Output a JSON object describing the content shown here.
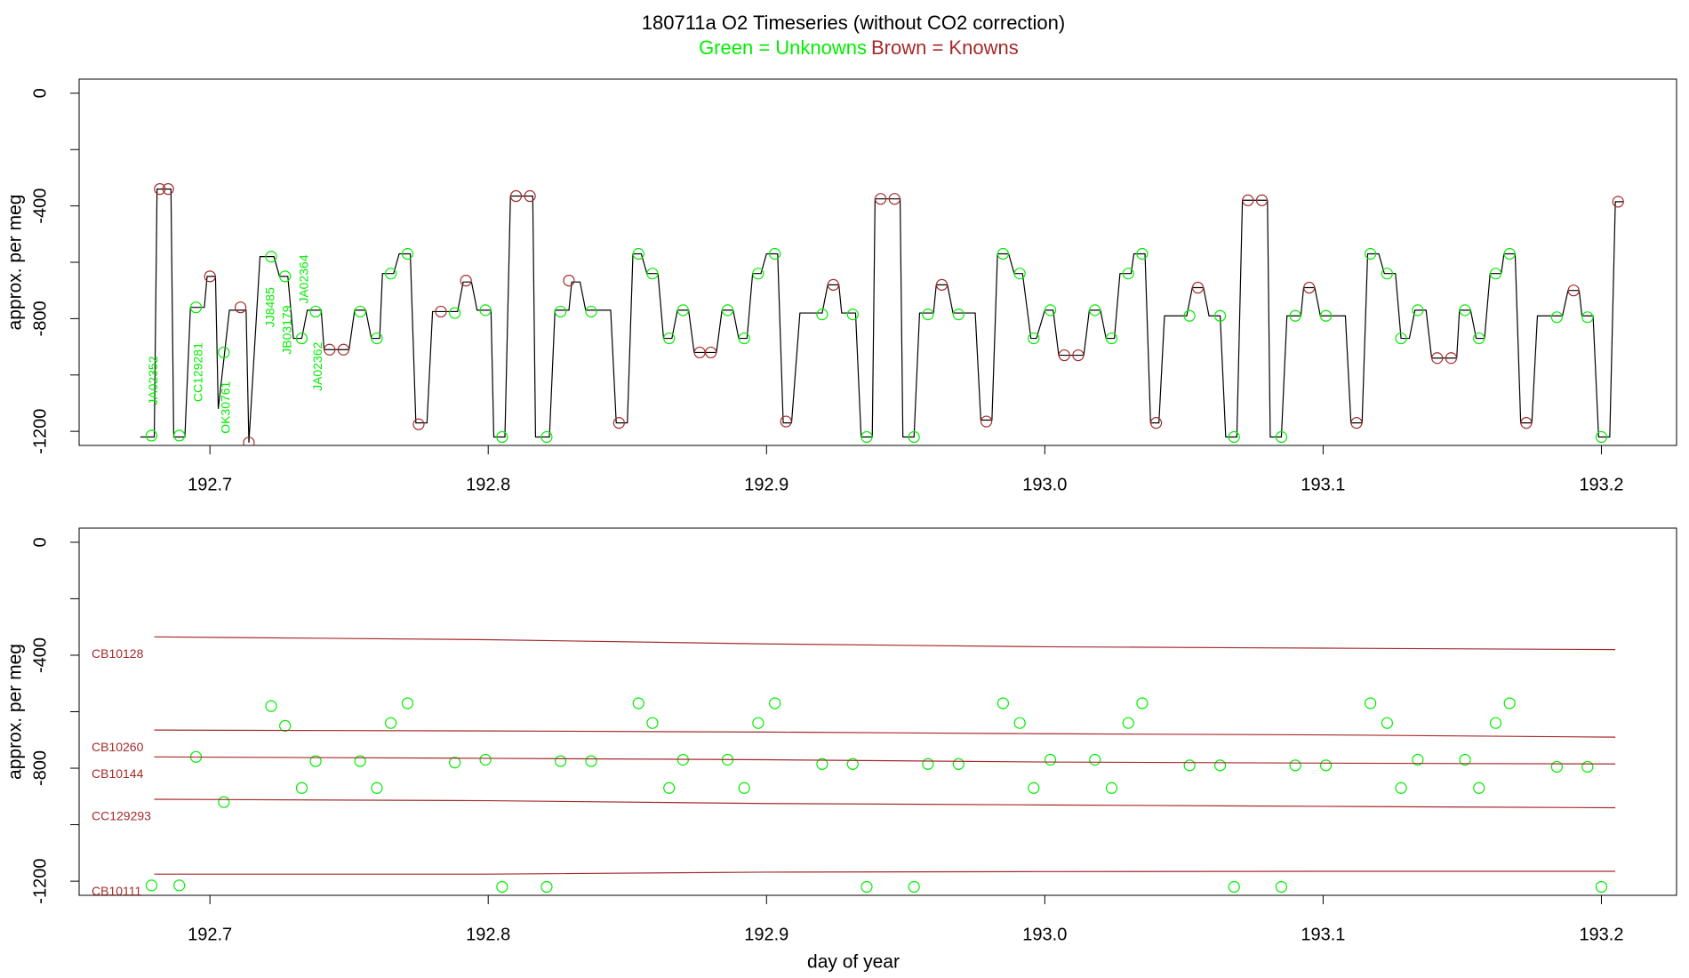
{
  "chart_data": [
    {
      "type": "line",
      "title": "180711a   O2 Timeseries (without CO2 correction)",
      "subtitle": [
        {
          "text": "Green = Unknowns",
          "color": "#00ee00"
        },
        {
          "text": "Brown = Knowns",
          "color": "#a52a2a"
        }
      ],
      "ylabel": "approx. per meg",
      "xlim": [
        192.653,
        193.227
      ],
      "ylim": [
        -1250,
        50
      ],
      "xticks": [
        192.7,
        192.8,
        192.9,
        {
          "value": 193,
          "label": "193.0"
        },
        193.1,
        193.2
      ],
      "yticks": [
        0,
        -400,
        -800,
        -1200
      ],
      "minor_yticks": [
        -200,
        -600,
        -1000
      ],
      "series": [
        {
          "mode": "line",
          "color": "#000000",
          "x": [
            192.675,
            192.68,
            192.681,
            192.686,
            192.687,
            192.691,
            192.693,
            192.698,
            192.699,
            192.702,
            192.703,
            192.707,
            192.713,
            192.714,
            192.718,
            192.723,
            192.725,
            192.728,
            192.73,
            192.733,
            192.735,
            192.74,
            192.741,
            192.75,
            192.752,
            192.756,
            192.758,
            192.761,
            192.762,
            192.766,
            192.768,
            192.772,
            192.774,
            192.778,
            192.78,
            192.789,
            192.791,
            192.794,
            192.796,
            192.801,
            192.802,
            192.806,
            192.808,
            192.816,
            192.817,
            192.822,
            192.824,
            192.829,
            192.83,
            192.833,
            192.835,
            192.844,
            192.846,
            192.85,
            192.852,
            192.855,
            192.857,
            192.861,
            192.863,
            192.866,
            192.868,
            192.872,
            192.874,
            192.882,
            192.884,
            192.888,
            192.89,
            192.893,
            192.895,
            192.898,
            192.9,
            192.904,
            192.906,
            192.909,
            192.912,
            192.92,
            192.922,
            192.926,
            192.927,
            192.932,
            192.934,
            192.938,
            192.939,
            192.948,
            192.949,
            192.953,
            192.955,
            192.96,
            192.961,
            192.965,
            192.967,
            192.975,
            192.977,
            192.981,
            192.983,
            192.987,
            192.989,
            192.992,
            192.995,
            192.997,
            193.0,
            193.003,
            193.005,
            193.014,
            193.016,
            193.02,
            193.022,
            193.025,
            193.027,
            193.031,
            193.032,
            193.036,
            193.038,
            193.041,
            193.043,
            193.051,
            193.053,
            193.057,
            193.059,
            193.063,
            193.065,
            193.069,
            193.071,
            193.08,
            193.081,
            193.085,
            193.087,
            193.092,
            193.093,
            193.097,
            193.099,
            193.108,
            193.11,
            193.114,
            193.116,
            193.12,
            193.122,
            193.126,
            193.128,
            193.131,
            193.133,
            193.137,
            193.139,
            193.148,
            193.149,
            193.153,
            193.155,
            193.158,
            193.16,
            193.164,
            193.165,
            193.169,
            193.171,
            193.175,
            193.177,
            193.186,
            193.188,
            193.192,
            193.193,
            193.197,
            193.199,
            193.203,
            193.205,
            193.208
          ],
          "values": [
            -1220,
            -1220,
            -340,
            -340,
            -1220,
            -1220,
            -760,
            -760,
            -650,
            -650,
            -1120,
            -770,
            -770,
            -1240,
            -580,
            -580,
            -650,
            -650,
            -870,
            -870,
            -770,
            -770,
            -910,
            -910,
            -770,
            -770,
            -870,
            -870,
            -640,
            -640,
            -570,
            -570,
            -1170,
            -1170,
            -775,
            -775,
            -670,
            -670,
            -770,
            -770,
            -1220,
            -1220,
            -365,
            -365,
            -1220,
            -1220,
            -770,
            -770,
            -670,
            -670,
            -770,
            -770,
            -1170,
            -1170,
            -570,
            -570,
            -640,
            -640,
            -870,
            -870,
            -770,
            -770,
            -920,
            -920,
            -770,
            -770,
            -870,
            -870,
            -640,
            -640,
            -570,
            -570,
            -1170,
            -1170,
            -780,
            -780,
            -680,
            -680,
            -780,
            -780,
            -1220,
            -1220,
            -375,
            -375,
            -1220,
            -1220,
            -780,
            -780,
            -680,
            -680,
            -780,
            -780,
            -1160,
            -1160,
            -570,
            -570,
            -640,
            -640,
            -870,
            -870,
            -770,
            -770,
            -930,
            -930,
            -770,
            -770,
            -870,
            -870,
            -640,
            -640,
            -570,
            -570,
            -1170,
            -1170,
            -790,
            -790,
            -690,
            -690,
            -790,
            -790,
            -1220,
            -1220,
            -380,
            -380,
            -1220,
            -1220,
            -790,
            -790,
            -690,
            -690,
            -790,
            -790,
            -1170,
            -1170,
            -570,
            -570,
            -640,
            -640,
            -870,
            -870,
            -770,
            -770,
            -940,
            -940,
            -770,
            -770,
            -870,
            -870,
            -640,
            -640,
            -570,
            -570,
            -1170,
            -1170,
            -790,
            -790,
            -700,
            -700,
            -790,
            -790,
            -1220,
            -1220,
            -385,
            -385
          ]
        },
        {
          "mode": "points",
          "color": "#00ee00",
          "x": [
            192.679,
            192.689,
            192.695,
            192.705,
            192.722,
            192.727,
            192.733,
            192.738,
            192.754,
            192.76,
            192.765,
            192.771,
            192.788,
            192.799,
            192.805,
            192.821,
            192.826,
            192.837,
            192.854,
            192.859,
            192.865,
            192.87,
            192.886,
            192.892,
            192.897,
            192.903,
            192.92,
            192.931,
            192.936,
            192.953,
            192.958,
            192.969,
            192.985,
            192.991,
            192.996,
            193.002,
            193.018,
            193.024,
            193.03,
            193.035,
            193.052,
            193.063,
            193.068,
            193.085,
            193.09,
            193.101,
            193.117,
            193.123,
            193.128,
            193.134,
            193.151,
            193.156,
            193.162,
            193.167,
            193.184,
            193.195,
            193.2
          ],
          "values": [
            -1215,
            -1215,
            -760,
            -920,
            -580,
            -650,
            -870,
            -775,
            -775,
            -870,
            -640,
            -570,
            -780,
            -770,
            -1220,
            -1220,
            -775,
            -775,
            -570,
            -640,
            -870,
            -770,
            -770,
            -870,
            -640,
            -570,
            -785,
            -785,
            -1220,
            -1220,
            -785,
            -785,
            -570,
            -640,
            -870,
            -770,
            -770,
            -870,
            -640,
            -570,
            -790,
            -790,
            -1220,
            -1220,
            -790,
            -790,
            -570,
            -640,
            -870,
            -770,
            -770,
            -870,
            -640,
            -570,
            -795,
            -795,
            -1220
          ]
        },
        {
          "mode": "points",
          "color": "#a52a2a",
          "x": [
            192.682,
            192.685,
            192.7,
            192.711,
            192.714,
            192.743,
            192.748,
            192.775,
            192.783,
            192.792,
            192.81,
            192.815,
            192.829,
            192.847,
            192.876,
            192.88,
            192.907,
            192.924,
            192.941,
            192.946,
            192.963,
            192.979,
            193.007,
            193.012,
            193.04,
            193.055,
            193.073,
            193.078,
            193.095,
            193.112,
            193.141,
            193.146,
            193.173,
            193.19,
            193.206
          ],
          "values": [
            -340,
            -340,
            -650,
            -760,
            -1240,
            -910,
            -910,
            -1175,
            -775,
            -665,
            -365,
            -365,
            -665,
            -1170,
            -920,
            -920,
            -1165,
            -680,
            -375,
            -375,
            -680,
            -1165,
            -930,
            -930,
            -1170,
            -690,
            -380,
            -380,
            -690,
            -1170,
            -940,
            -940,
            -1170,
            -700,
            -385
          ]
        }
      ],
      "annotations": [
        {
          "text": "JA02352",
          "x": 192.68,
          "y": -1020,
          "color": "#00ee00"
        },
        {
          "text": "CC129281",
          "x": 192.696,
          "y": -990,
          "color": "#00ee00"
        },
        {
          "text": "OK30761",
          "x": 192.706,
          "y": -1115,
          "color": "#00ee00"
        },
        {
          "text": "JJ8485",
          "x": 192.722,
          "y": -760,
          "color": "#00ee00"
        },
        {
          "text": "JB03179",
          "x": 192.728,
          "y": -840,
          "color": "#00ee00"
        },
        {
          "text": "JA02364",
          "x": 192.734,
          "y": -660,
          "color": "#00ee00"
        },
        {
          "text": "JA02362",
          "x": 192.739,
          "y": -970,
          "color": "#00ee00"
        }
      ]
    },
    {
      "type": "scatter",
      "ylabel": "approx. per meg",
      "xlabel": "day of year",
      "xlim": [
        192.653,
        193.227
      ],
      "ylim": [
        -1250,
        50
      ],
      "xticks": [
        192.7,
        192.8,
        192.9,
        {
          "value": 193,
          "label": "193.0"
        },
        193.1,
        193.2
      ],
      "yticks": [
        0,
        -400,
        -800,
        -1200
      ],
      "minor_yticks": [
        -200,
        -600,
        -1000
      ],
      "series": [
        {
          "mode": "points",
          "color": "#00ee00",
          "x": [
            192.679,
            192.689,
            192.695,
            192.705,
            192.722,
            192.727,
            192.733,
            192.738,
            192.754,
            192.76,
            192.765,
            192.771,
            192.788,
            192.799,
            192.805,
            192.821,
            192.826,
            192.837,
            192.854,
            192.859,
            192.865,
            192.87,
            192.886,
            192.892,
            192.897,
            192.903,
            192.92,
            192.931,
            192.936,
            192.953,
            192.958,
            192.969,
            192.985,
            192.991,
            192.996,
            193.002,
            193.018,
            193.024,
            193.03,
            193.035,
            193.052,
            193.063,
            193.068,
            193.085,
            193.09,
            193.101,
            193.117,
            193.123,
            193.128,
            193.134,
            193.151,
            193.156,
            193.162,
            193.167,
            193.184,
            193.195,
            193.2
          ],
          "values": [
            -1215,
            -1215,
            -760,
            -920,
            -580,
            -650,
            -870,
            -775,
            -775,
            -870,
            -640,
            -570,
            -780,
            -770,
            -1220,
            -1220,
            -775,
            -775,
            -570,
            -640,
            -870,
            -770,
            -770,
            -870,
            -640,
            -570,
            -785,
            -785,
            -1220,
            -1220,
            -785,
            -785,
            -570,
            -640,
            -870,
            -770,
            -770,
            -870,
            -640,
            -570,
            -790,
            -790,
            -1220,
            -1220,
            -790,
            -790,
            -570,
            -640,
            -870,
            -770,
            -770,
            -870,
            -640,
            -570,
            -795,
            -795,
            -1220
          ]
        },
        {
          "mode": "line",
          "name": "CB10128",
          "color": "#a52a2a",
          "x": [
            192.68,
            192.8,
            192.9,
            193.0,
            193.1,
            193.205
          ],
          "values": [
            -335,
            -345,
            -360,
            -370,
            -375,
            -380
          ]
        },
        {
          "mode": "line",
          "name": "CB10260",
          "color": "#a52a2a",
          "x": [
            192.68,
            192.8,
            192.9,
            193.0,
            193.1,
            193.205
          ],
          "values": [
            -665,
            -668,
            -672,
            -678,
            -682,
            -690
          ]
        },
        {
          "mode": "line",
          "name": "CB10144",
          "color": "#a52a2a",
          "x": [
            192.68,
            192.8,
            192.9,
            193.0,
            193.1,
            193.205
          ],
          "values": [
            -760,
            -765,
            -770,
            -778,
            -782,
            -785
          ]
        },
        {
          "mode": "line",
          "name": "CC129293",
          "color": "#a52a2a",
          "x": [
            192.68,
            192.8,
            192.9,
            193.0,
            193.1,
            193.205
          ],
          "values": [
            -910,
            -915,
            -925,
            -930,
            -935,
            -940
          ]
        },
        {
          "mode": "line",
          "name": "CB10111",
          "color": "#a52a2a",
          "x": [
            192.68,
            192.8,
            192.9,
            193.0,
            193.1,
            193.205
          ],
          "values": [
            -1175,
            -1175,
            -1168,
            -1166,
            -1165,
            -1165
          ]
        }
      ]
    }
  ]
}
